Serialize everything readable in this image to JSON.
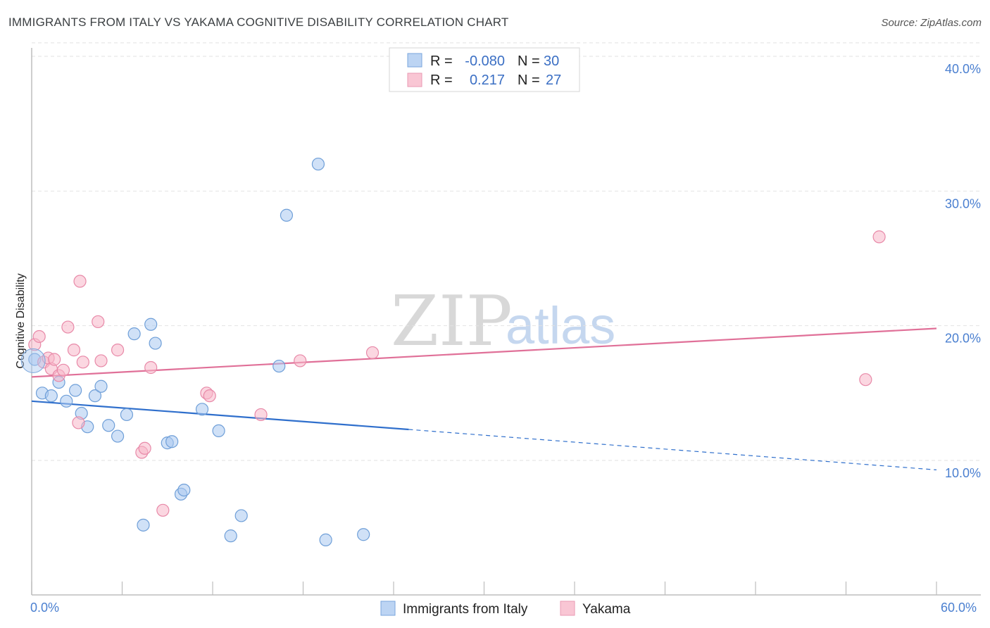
{
  "title": "IMMIGRANTS FROM ITALY VS YAKAMA COGNITIVE DISABILITY CORRELATION CHART",
  "source": "Source: ZipAtlas.com",
  "watermark": {
    "zip": "ZIP",
    "atlas": "atlas"
  },
  "chart_data": {
    "type": "scatter",
    "title": "IMMIGRANTS FROM ITALY VS YAKAMA COGNITIVE DISABILITY CORRELATION CHART",
    "xlabel": "",
    "ylabel": "Cognitive Disability",
    "xlim": [
      0,
      60
    ],
    "ylim": [
      0,
      41
    ],
    "x_tick_labels": {
      "min": "0.0%",
      "max": "60.0%"
    },
    "y_ticks": [
      10,
      20,
      30,
      40
    ],
    "y_tick_labels": [
      "10.0%",
      "20.0%",
      "30.0%",
      "40.0%"
    ],
    "legend": {
      "placement": "top-center",
      "rows": [
        {
          "r_label": "R =",
          "r_value": "-0.080",
          "n_label": "N =",
          "n_value": "30"
        },
        {
          "r_label": "R =",
          "r_value": "0.217",
          "n_label": "N =",
          "n_value": "27"
        }
      ]
    },
    "series": [
      {
        "name": "Immigrants from Italy",
        "color": "#a9c8f0",
        "stroke": "#6f9fd8",
        "line_color": "#2f6fcc",
        "trend": {
          "x0": 0,
          "y0": 14.4,
          "x1": 25,
          "y1": 12.3,
          "x_dash_end": 60,
          "y_dash_end": 9.3
        },
        "points": [
          [
            0.2,
            17.5
          ],
          [
            0.7,
            15.0
          ],
          [
            1.3,
            14.8
          ],
          [
            1.8,
            15.8
          ],
          [
            2.3,
            14.4
          ],
          [
            2.9,
            15.2
          ],
          [
            3.3,
            13.5
          ],
          [
            3.7,
            12.5
          ],
          [
            4.2,
            14.8
          ],
          [
            4.6,
            15.5
          ],
          [
            5.1,
            12.6
          ],
          [
            5.7,
            11.8
          ],
          [
            6.3,
            13.4
          ],
          [
            6.8,
            19.4
          ],
          [
            7.4,
            5.2
          ],
          [
            7.9,
            20.1
          ],
          [
            8.2,
            18.7
          ],
          [
            9.0,
            11.3
          ],
          [
            9.3,
            11.4
          ],
          [
            9.9,
            7.5
          ],
          [
            10.1,
            7.8
          ],
          [
            11.3,
            13.8
          ],
          [
            12.4,
            12.2
          ],
          [
            13.2,
            4.4
          ],
          [
            13.9,
            5.9
          ],
          [
            16.4,
            17.0
          ],
          [
            16.9,
            28.2
          ],
          [
            19.0,
            32.0
          ],
          [
            19.5,
            4.1
          ],
          [
            22.0,
            4.5
          ]
        ]
      },
      {
        "name": "Yakama",
        "color": "#f7b6c9",
        "stroke": "#e889a8",
        "line_color": "#e07098",
        "trend": {
          "x0": 0,
          "y0": 16.2,
          "x1": 60,
          "y1": 19.8
        },
        "points": [
          [
            0.2,
            18.6
          ],
          [
            0.5,
            19.2
          ],
          [
            0.8,
            17.3
          ],
          [
            1.1,
            17.6
          ],
          [
            1.3,
            16.8
          ],
          [
            1.5,
            17.5
          ],
          [
            1.8,
            16.3
          ],
          [
            2.1,
            16.7
          ],
          [
            2.4,
            19.9
          ],
          [
            2.8,
            18.2
          ],
          [
            3.1,
            12.8
          ],
          [
            3.2,
            23.3
          ],
          [
            3.4,
            17.3
          ],
          [
            4.4,
            20.3
          ],
          [
            4.6,
            17.4
          ],
          [
            5.7,
            18.2
          ],
          [
            7.3,
            10.6
          ],
          [
            7.5,
            10.9
          ],
          [
            7.9,
            16.9
          ],
          [
            8.7,
            6.3
          ],
          [
            11.6,
            15.0
          ],
          [
            11.8,
            14.8
          ],
          [
            15.2,
            13.4
          ],
          [
            17.8,
            17.4
          ],
          [
            22.6,
            18.0
          ],
          [
            55.3,
            16.0
          ],
          [
            56.2,
            26.6
          ]
        ]
      }
    ]
  }
}
